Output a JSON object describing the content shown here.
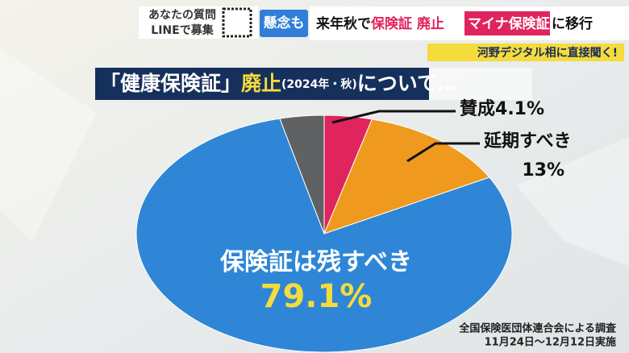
{
  "header": {
    "line_box": [
      "あなたの質問",
      "LINEで募集"
    ],
    "tag": "懸念も",
    "headline": [
      "来年秋で",
      "保険証 廃止"
    ],
    "highlight": "マイナ保険証",
    "highlight_tail": "に移行",
    "sub": "河野デジタル相に直接聞く!"
  },
  "chart_data": {
    "type": "pie",
    "title": [
      "「健康保険証」",
      "廃止",
      "(2024年・秋)",
      "について…"
    ],
    "categories": [
      "賛成",
      "延期すべき",
      "保険証は残すべき",
      null
    ],
    "values": [
      4.1,
      13,
      79.1,
      3.8
    ],
    "value_labels": [
      "4.1%",
      "13%",
      "79.1%",
      null
    ],
    "colors": [
      "#e0245e",
      "#ef9a1e",
      "#2f86d6",
      "#5f6163"
    ],
    "source": [
      "全国保険医団体連合会による調査",
      "11月24日〜12月12日実施"
    ]
  }
}
